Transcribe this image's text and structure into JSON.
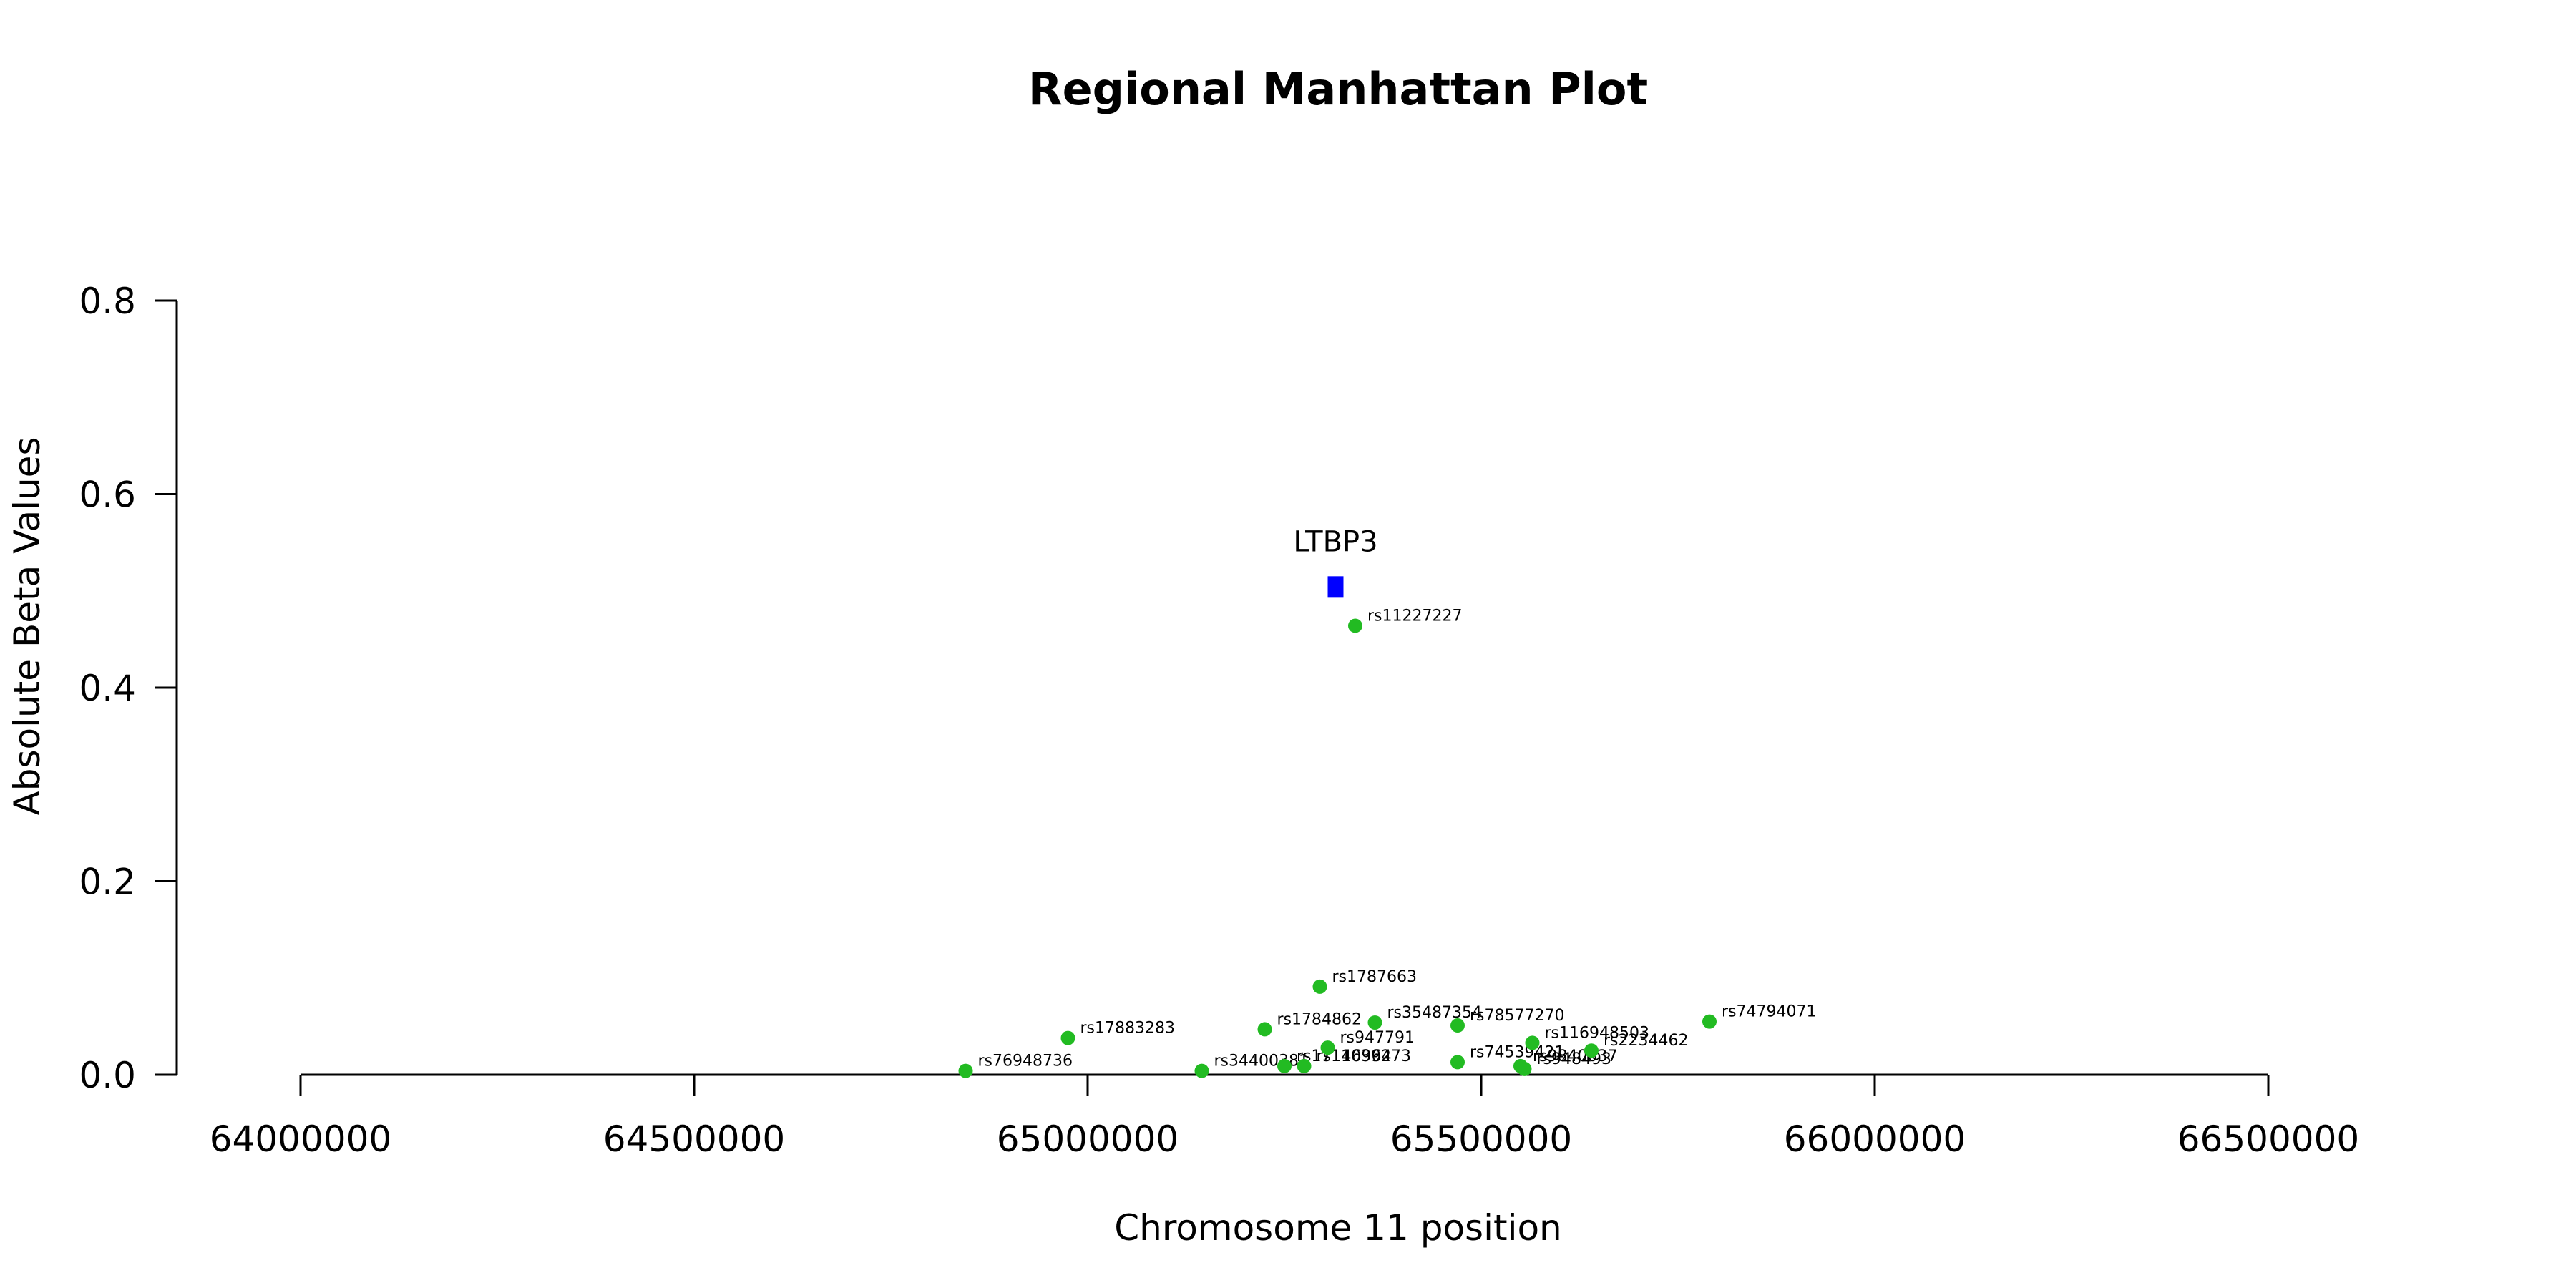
{
  "chart_data": {
    "type": "scatter",
    "title": "Regional Manhattan Plot",
    "xlabel": "Chromosome 11 position",
    "ylabel": "Absolute Beta Values",
    "xlim": [
      64000000,
      66500000
    ],
    "ylim": [
      0,
      0.8
    ],
    "x_ticks": [
      "64000000",
      "64500000",
      "65000000",
      "65500000",
      "66000000",
      "66500000"
    ],
    "y_ticks": [
      "0.0",
      "0.2",
      "0.4",
      "0.6",
      "0.8"
    ],
    "point_color": "#22bb22",
    "gene_color": "#0000ff",
    "grid": false,
    "points": [
      {
        "label": "rs76948736",
        "x": 64845000,
        "y": 0.004
      },
      {
        "label": "rs17883283",
        "x": 64975000,
        "y": 0.038
      },
      {
        "label": "rs34400381",
        "x": 65145000,
        "y": 0.004
      },
      {
        "label": "rs1784862",
        "x": 65225000,
        "y": 0.047
      },
      {
        "label": "rs17146964",
        "x": 65250000,
        "y": 0.009
      },
      {
        "label": "rs11039273",
        "x": 65275000,
        "y": 0.009
      },
      {
        "label": "rs1787663",
        "x": 65295000,
        "y": 0.091
      },
      {
        "label": "rs947791",
        "x": 65305000,
        "y": 0.028
      },
      {
        "label": "rs11227227",
        "x": 65340000,
        "y": 0.464
      },
      {
        "label": "rs35487354",
        "x": 65365000,
        "y": 0.054
      },
      {
        "label": "rs78577270",
        "x": 65470000,
        "y": 0.051
      },
      {
        "label": "rs74539421",
        "x": 65470000,
        "y": 0.013
      },
      {
        "label": "rs9840037",
        "x": 65550000,
        "y": 0.009
      },
      {
        "label": "rs948493",
        "x": 65555000,
        "y": 0.006
      },
      {
        "label": "rs116948503",
        "x": 65565000,
        "y": 0.033
      },
      {
        "label": "rs2234462",
        "x": 65640000,
        "y": 0.025
      },
      {
        "label": "rs74794071",
        "x": 65790000,
        "y": 0.055
      }
    ],
    "genes": [
      {
        "label": "LTBP3",
        "x": 65315000,
        "y": 0.504
      }
    ]
  }
}
